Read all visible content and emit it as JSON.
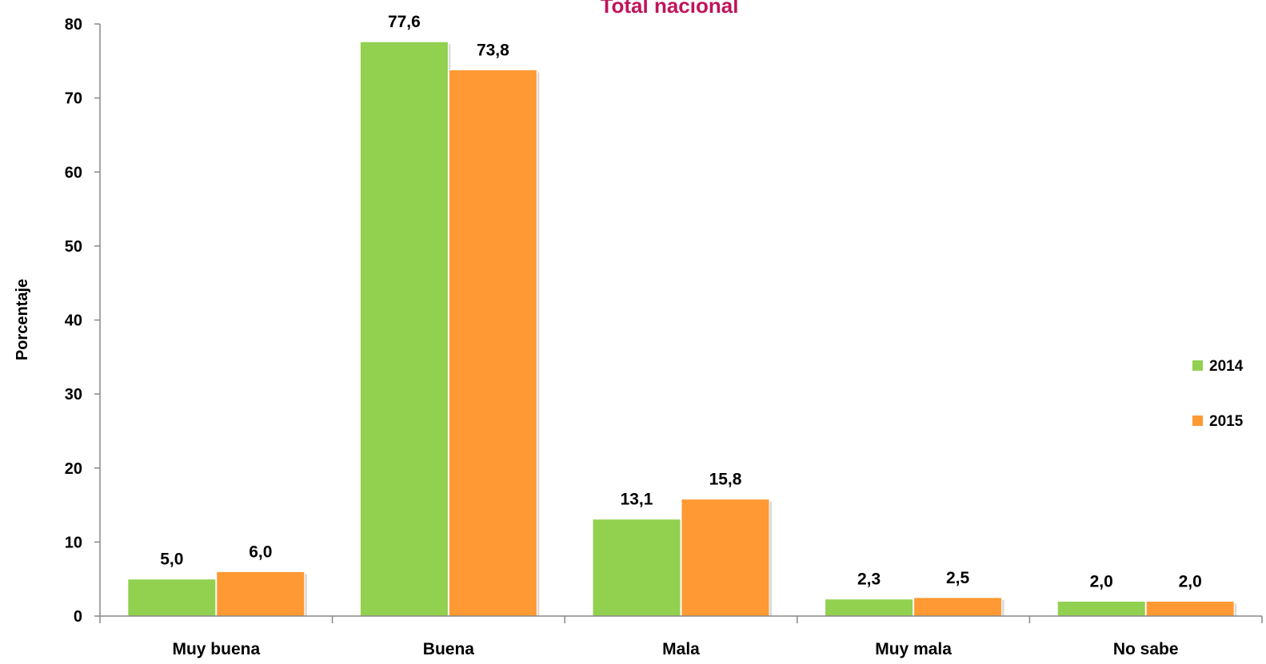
{
  "chart_data": {
    "type": "bar",
    "title": "Total nacional",
    "ylabel": "Porcentaje",
    "xlabel": "",
    "ylim": [
      0,
      80
    ],
    "yticks": [
      0,
      10,
      20,
      30,
      40,
      50,
      60,
      70,
      80
    ],
    "grid": false,
    "legend_position": "right",
    "categories": [
      "Muy buena",
      "Buena",
      "Mala",
      "Muy mala",
      "No sabe"
    ],
    "series": [
      {
        "name": "2014",
        "color": "#92d050",
        "values": [
          5.0,
          77.6,
          13.1,
          2.3,
          2.0
        ],
        "labels": [
          "5,0",
          "77,6",
          "13,1",
          "2,3",
          "2,0"
        ]
      },
      {
        "name": "2015",
        "color": "#ff9933",
        "values": [
          6.0,
          73.8,
          15.8,
          2.5,
          2.0
        ],
        "labels": [
          "6,0",
          "73,8",
          "15,8",
          "2,5",
          "2,0"
        ]
      }
    ]
  }
}
